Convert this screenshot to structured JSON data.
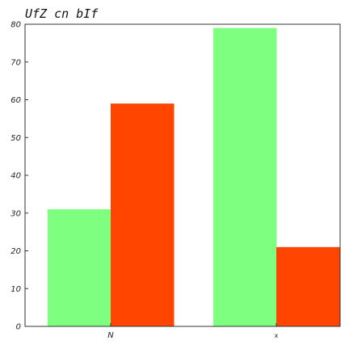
{
  "chart_data": {
    "type": "bar",
    "title": "UfZ cn bIf",
    "xlabel": "",
    "ylabel": "",
    "categories": [
      "N",
      "x"
    ],
    "series": [
      {
        "values": [
          31,
          79
        ],
        "color": "#7fff7f"
      },
      {
        "values": [
          59,
          21
        ],
        "color": "#ff4500"
      }
    ],
    "ylim": [
      0,
      80
    ],
    "yticks": [
      0,
      10,
      20,
      30,
      40,
      50,
      60,
      70,
      80
    ],
    "grid": false,
    "legend": "none"
  }
}
